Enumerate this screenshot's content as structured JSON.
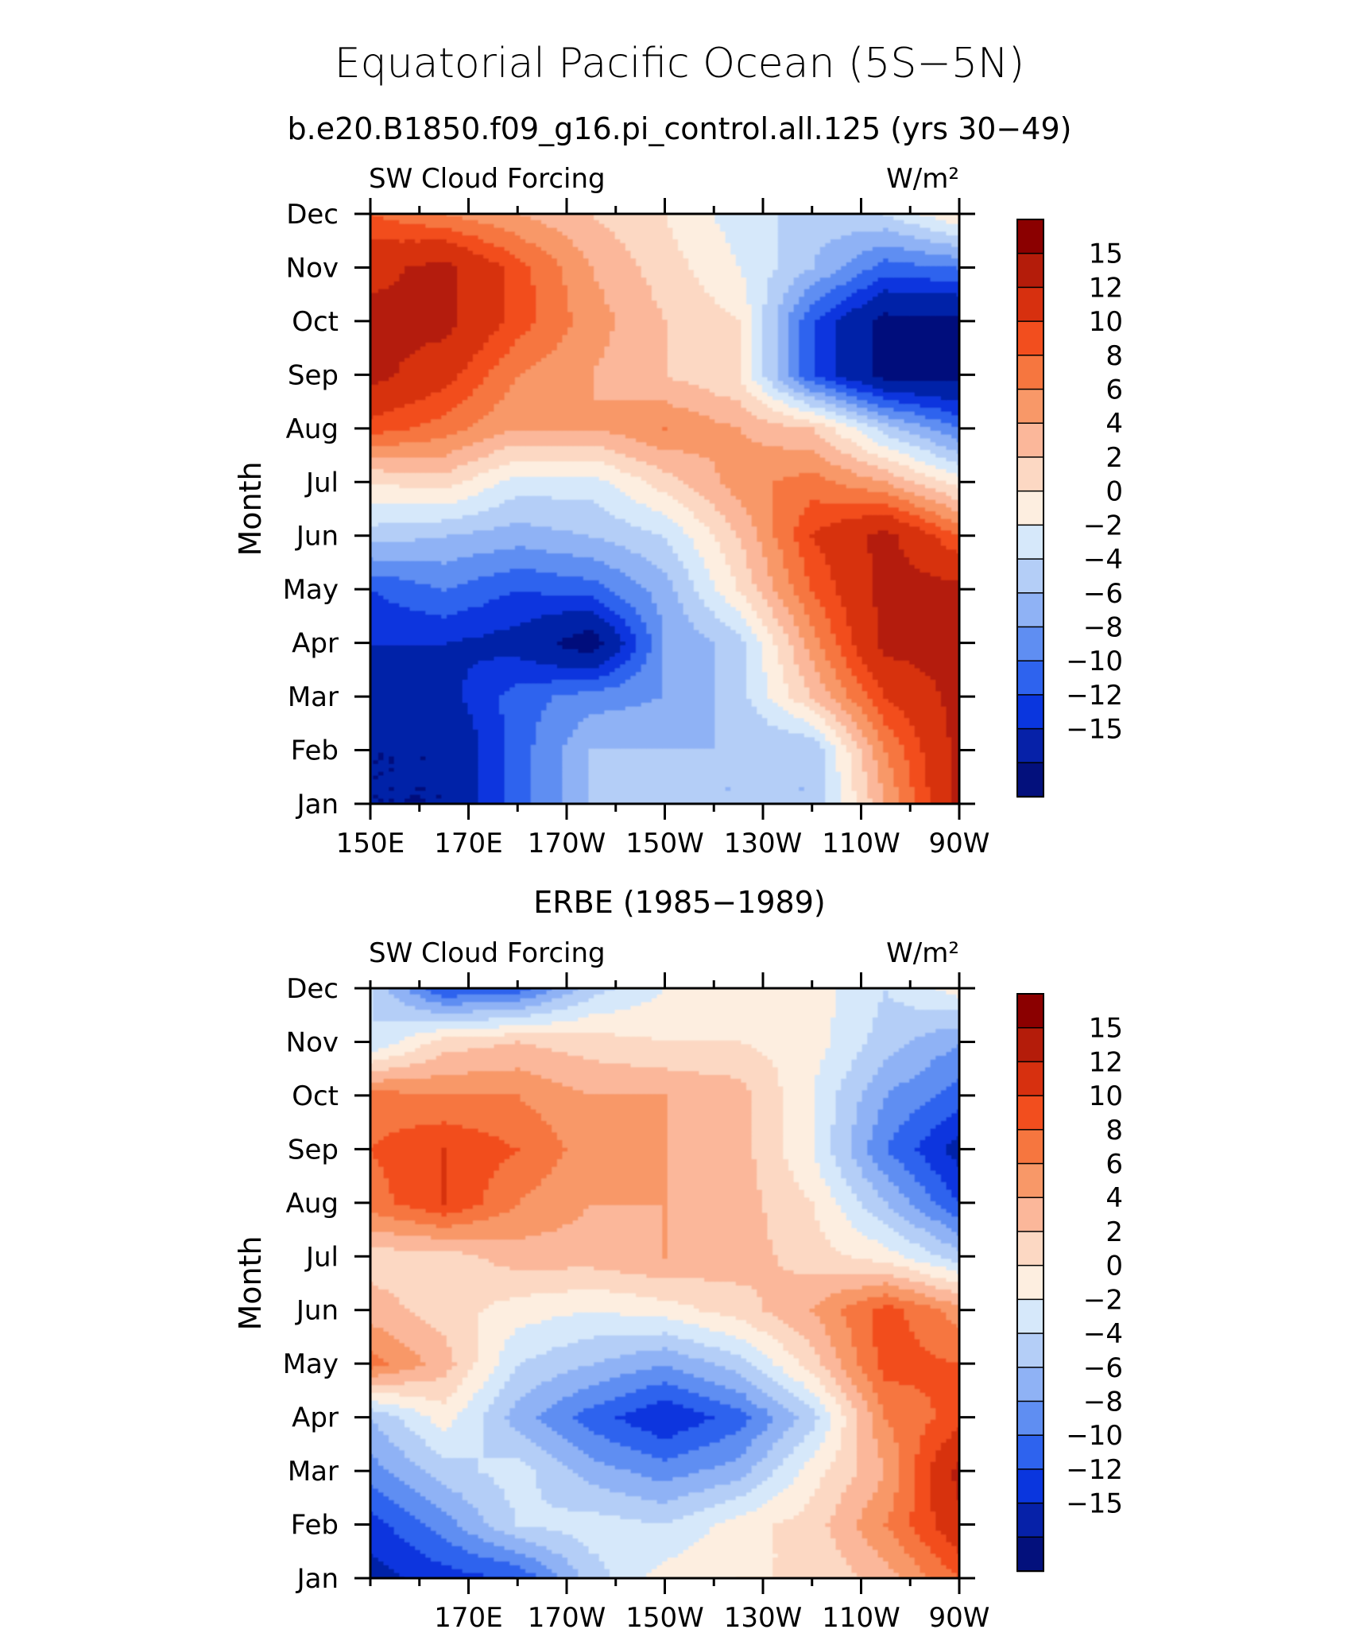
{
  "figure": {
    "title": "Equatorial Pacific Ocean (5S−5N)"
  },
  "colorbar": {
    "levels": [
      "15",
      "12",
      "10",
      "8",
      "6",
      "4",
      "2",
      "0",
      "−2",
      "−4",
      "−6",
      "−8",
      "−10",
      "−12",
      "−15"
    ],
    "colors": [
      "#8b0000",
      "#b41c0a",
      "#d7300f",
      "#f24e1e",
      "#f6763f",
      "#f89868",
      "#fbb79a",
      "#fcd8c3",
      "#fdeee0",
      "#d6e8fa",
      "#b4cef7",
      "#8fb2f5",
      "#5f8ef2",
      "#2e63ee",
      "#0a36de",
      "#0621a8",
      "#03107c"
    ]
  },
  "chart_data": [
    {
      "type": "heatmap",
      "subtitle": "b.e20.B1850.f09_g16.pi_control.all.125 (yrs 30−49)",
      "left_label": "SW Cloud Forcing",
      "right_label": "W/m²",
      "ylabel": "Month",
      "xlabel": "",
      "months": [
        "Jan",
        "Feb",
        "Mar",
        "Apr",
        "May",
        "Jun",
        "Jul",
        "Aug",
        "Sep",
        "Oct",
        "Nov",
        "Dec"
      ],
      "x_tick_labels": [
        "150E",
        "170E",
        "170W",
        "150W",
        "130W",
        "110W",
        "90W"
      ],
      "xlim_deg_east": [
        150,
        270
      ],
      "grid": [
        [
          -15,
          -15,
          -9,
          -4,
          -4,
          -4,
          -4,
          6,
          16
        ],
        [
          -15,
          -15,
          -9,
          -4,
          -4,
          -4,
          -4,
          8,
          16
        ],
        [
          -15,
          -13,
          -9,
          -7,
          -6,
          -3,
          4,
          12,
          16
        ],
        [
          -12,
          -12,
          -13,
          -17,
          -6,
          -3,
          7,
          16,
          16
        ],
        [
          -10,
          -8,
          -10,
          -9,
          -5,
          2,
          10,
          16,
          16
        ],
        [
          -3,
          -4,
          -5,
          -4,
          -2,
          4,
          12,
          16,
          10
        ],
        [
          2,
          3,
          -1,
          -1,
          3,
          7,
          9,
          6,
          1
        ],
        [
          11,
          9,
          6,
          6,
          8,
          6,
          4,
          -3,
          -8
        ],
        [
          16,
          13,
          8,
          6,
          4,
          2,
          -10,
          -16,
          -16
        ],
        [
          16,
          16,
          11,
          7,
          4,
          2,
          -10,
          -16,
          -16
        ],
        [
          14,
          16,
          11,
          6,
          3,
          0,
          -4,
          -9,
          -8
        ],
        [
          10,
          8,
          6,
          4,
          2,
          -1,
          -3,
          -2,
          2
        ]
      ]
    },
    {
      "type": "heatmap",
      "subtitle": "ERBE (1985−1989)",
      "left_label": "SW Cloud Forcing",
      "right_label": "W/m²",
      "ylabel": "Month",
      "xlabel": "",
      "months": [
        "Jan",
        "Feb",
        "Mar",
        "Apr",
        "May",
        "Jun",
        "Jul",
        "Aug",
        "Sep",
        "Oct",
        "Nov",
        "Dec"
      ],
      "x_tick_labels": [
        "170E",
        "170W",
        "150W",
        "130W",
        "110W",
        "90W"
      ],
      "xlim_deg_east": [
        150,
        270
      ],
      "grid": [
        [
          -13,
          -11,
          -10,
          -3,
          1,
          2,
          2,
          5,
          10
        ],
        [
          -11,
          -7,
          -2,
          -1,
          -2,
          1,
          3,
          8,
          14
        ],
        [
          -7,
          -3,
          -1,
          -5,
          -7,
          -5,
          1,
          6,
          16
        ],
        [
          -4,
          1,
          -5,
          -9,
          -12,
          -9,
          -3,
          8,
          11
        ],
        [
          9,
          5,
          -2,
          -4,
          -6,
          -3,
          3,
          11,
          10
        ],
        [
          5,
          3,
          1,
          0,
          1,
          3,
          6,
          11,
          7
        ],
        [
          3,
          3,
          5,
          5,
          6,
          5,
          3,
          1,
          -3
        ],
        [
          9,
          12,
          8,
          6,
          6,
          5,
          2,
          -4,
          -10
        ],
        [
          10,
          12,
          10,
          7,
          6,
          5,
          0,
          -8,
          -13
        ],
        [
          9,
          8,
          8,
          6,
          6,
          5,
          0,
          -6,
          -9
        ],
        [
          -2,
          3,
          4,
          3,
          2,
          2,
          1,
          -3,
          -6
        ],
        [
          -2,
          -10,
          -9,
          -3,
          0,
          1,
          1,
          -2,
          1
        ]
      ]
    }
  ]
}
